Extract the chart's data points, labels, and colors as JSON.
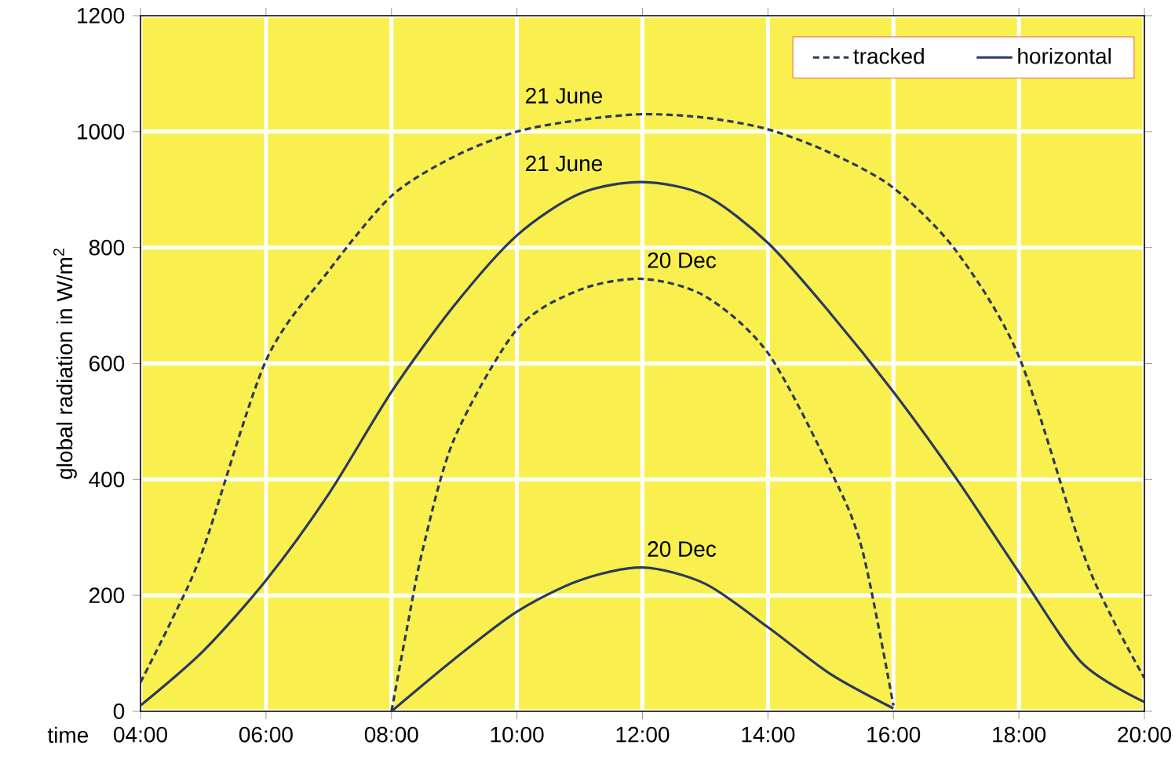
{
  "chart_data": {
    "type": "line",
    "xlabel": "time",
    "ylabel": "global radiation in W/m$^{2}$",
    "xlim": [
      4,
      20
    ],
    "ylim": [
      0,
      1200
    ],
    "xticks": [
      {
        "value": 4,
        "label": "04:00"
      },
      {
        "value": 6,
        "label": "06:00"
      },
      {
        "value": 8,
        "label": "08:00"
      },
      {
        "value": 10,
        "label": "10:00"
      },
      {
        "value": 12,
        "label": "12:00"
      },
      {
        "value": 14,
        "label": "14:00"
      },
      {
        "value": 16,
        "label": "16:00"
      },
      {
        "value": 18,
        "label": "18:00"
      },
      {
        "value": 20,
        "label": "20:00"
      }
    ],
    "yticks": [
      0,
      200,
      400,
      600,
      800,
      1000,
      1200
    ],
    "grid": true,
    "legend": "top right",
    "marker": "none",
    "series": [
      {
        "name": "tracked",
        "color": "#2b3a5c",
        "line_style": "dashed",
        "x": [
          4,
          4.5,
          5,
          6,
          7,
          8,
          9,
          10,
          11,
          12,
          13,
          14,
          15,
          16,
          17,
          18,
          19,
          19.5,
          20
        ],
        "values": [
          50,
          158,
          280,
          605,
          760,
          889,
          957,
          1000,
          1020,
          1030,
          1024,
          1004,
          963,
          903,
          794,
          612,
          280,
          158,
          57
        ]
      },
      {
        "name": "horizontal",
        "color": "#2b3a5c",
        "line_style": "solid",
        "x": [
          4,
          5,
          6,
          7,
          8,
          9,
          10,
          11,
          12,
          13,
          14,
          15,
          16,
          17,
          18,
          19,
          20
        ],
        "values": [
          10,
          104,
          226,
          375,
          551,
          700,
          821,
          893,
          913,
          890,
          808,
          686,
          551,
          402,
          240,
          84,
          16
        ]
      },
      {
        "color": "#2b3a5c",
        "line_style": "dashed",
        "x": [
          8,
          8.25,
          8.5,
          9,
          10,
          11,
          12,
          13,
          14,
          15,
          15.5,
          16
        ],
        "values": [
          0,
          145,
          280,
          470,
          659,
          727,
          746,
          716,
          618,
          415,
          280,
          10
        ]
      },
      {
        "color": "#2b3a5c",
        "line_style": "solid",
        "x": [
          8,
          9,
          10,
          11,
          12,
          13,
          14,
          15,
          16
        ],
        "values": [
          0,
          90,
          172,
          226,
          248,
          220,
          145,
          64,
          5
        ]
      }
    ],
    "annotations": [
      "21 June",
      "21 June",
      "20 Dec",
      "20 Dec"
    ]
  }
}
